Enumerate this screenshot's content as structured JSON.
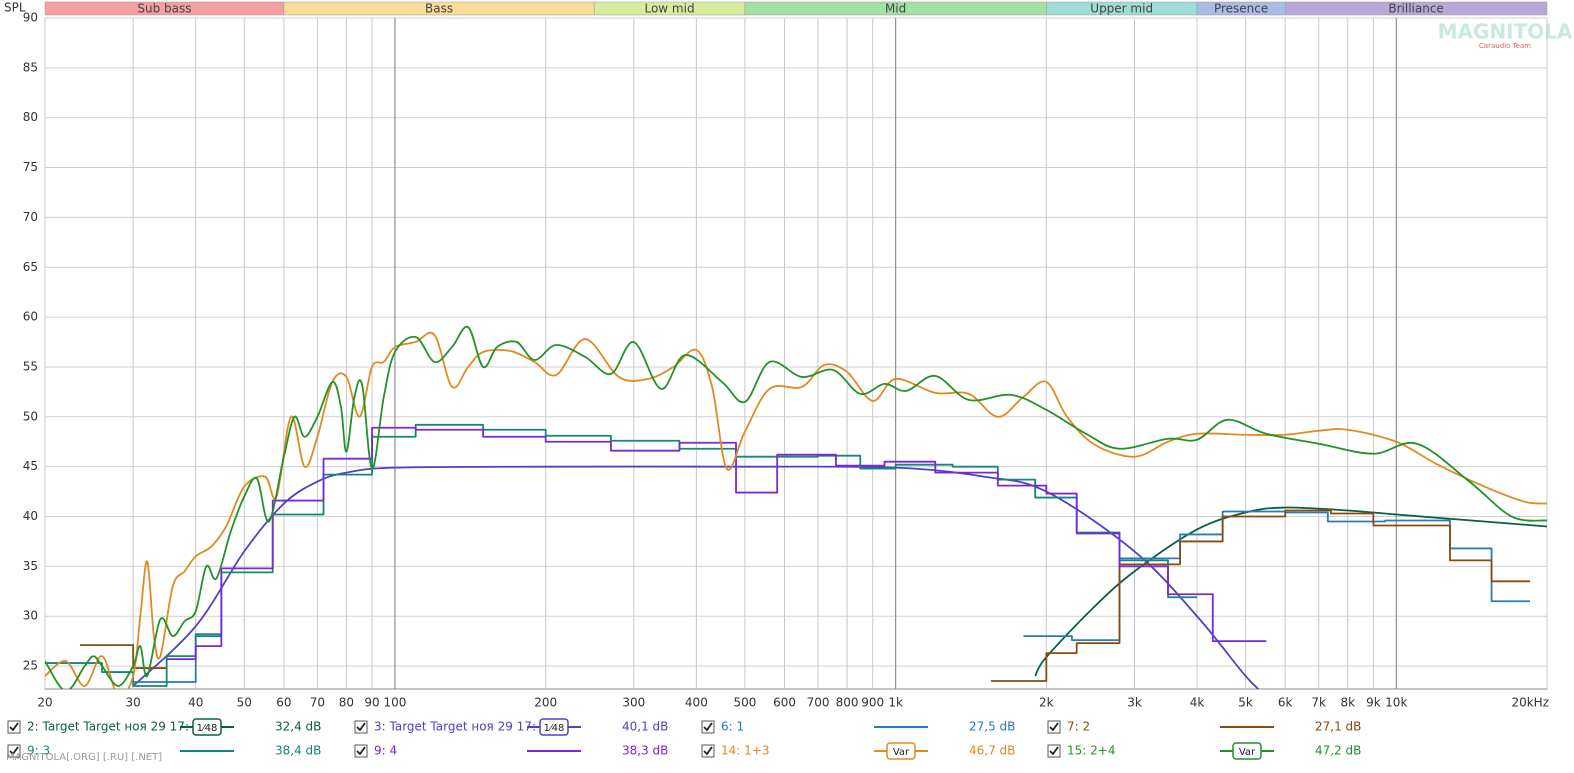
{
  "chart_data": {
    "type": "line",
    "ylabel": "SPL",
    "xscale": "log",
    "grid": true,
    "xlim": [
      20,
      20000
    ],
    "ylim": [
      22.7,
      90
    ],
    "yticks": [
      25,
      30,
      35,
      40,
      45,
      50,
      55,
      60,
      65,
      70,
      75,
      80,
      85,
      90
    ],
    "xticks": [
      20,
      30,
      40,
      50,
      60,
      70,
      80,
      90,
      100,
      200,
      300,
      400,
      500,
      600,
      700,
      800,
      900,
      {
        "value": 1000,
        "label": "1k"
      },
      {
        "value": 2000,
        "label": "2k"
      },
      {
        "value": 3000,
        "label": "3k"
      },
      {
        "value": 4000,
        "label": "4k"
      },
      {
        "value": 5000,
        "label": "5k"
      },
      {
        "value": 6000,
        "label": "6k"
      },
      {
        "value": 7000,
        "label": "7k"
      },
      {
        "value": 8000,
        "label": "8k"
      },
      {
        "value": 9000,
        "label": "9k"
      },
      {
        "value": 10000,
        "label": "10k"
      },
      {
        "value": 20000,
        "label": "20kHz"
      }
    ],
    "bands": [
      {
        "name": "Sub bass",
        "from": 20,
        "to": 60,
        "color": "#f4a0a0"
      },
      {
        "name": "Bass",
        "from": 60,
        "to": 250,
        "color": "#f8dc98"
      },
      {
        "name": "Low mid",
        "from": 250,
        "to": 500,
        "color": "#d8eca0"
      },
      {
        "name": "Mid",
        "from": 500,
        "to": 2000,
        "color": "#a4e0a4"
      },
      {
        "name": "Upper mid",
        "from": 2000,
        "to": 4000,
        "color": "#a0dcd4"
      },
      {
        "name": "Presence",
        "from": 4000,
        "to": 6000,
        "color": "#a8bce4"
      },
      {
        "name": "Brilliance",
        "from": 6000,
        "to": 20000,
        "color": "#b8a8d8"
      }
    ],
    "watermark": "MAGNITOLA[.ORG] [.RU] [.NET]",
    "logo": "MAGNITOLA",
    "logo_sub": "Caraudio Team",
    "series": [
      {
        "name": "2: Target Target ноя 29 17:",
        "color": "#0a6040",
        "drawstyle": "smooth",
        "icon_label": "1⁄48",
        "level": "32,4 dB",
        "x": [
          1900,
          2000,
          2500,
          3000,
          4000,
          5000,
          6000,
          8000,
          10000,
          15000,
          20000
        ],
        "values": [
          24,
          25.9,
          31,
          34.5,
          38.7,
          40.4,
          40.9,
          40.6,
          40.2,
          39.5,
          39.0
        ]
      },
      {
        "name": "3: Target Target ноя 29 17:",
        "color": "#5040c8",
        "drawstyle": "smooth",
        "icon_label": "1⁄48",
        "level": "40,1 dB",
        "x": [
          30,
          40,
          50,
          60,
          70,
          80,
          100,
          200,
          500,
          1000,
          1500,
          2000,
          3000,
          4000,
          5000,
          5500
        ],
        "values": [
          23,
          29,
          36.5,
          41.3,
          43.5,
          44.4,
          44.9,
          45,
          45,
          44.9,
          44,
          42.5,
          36.5,
          30,
          24,
          22
        ]
      },
      {
        "name": "6: 1",
        "color": "#2a7ab8",
        "drawstyle": "steps",
        "level": "27,5 dB",
        "x": [
          30,
          40,
          45,
          1800,
          2250,
          2800,
          3700,
          4500,
          6000,
          7300,
          9500,
          12800,
          15500,
          18500
        ],
        "values": [
          23.4,
          28.2,
          null,
          28,
          27.6,
          35.8,
          38.2,
          40.5,
          40.4,
          39.5,
          39.6,
          36.8,
          31.5,
          null
        ]
      },
      {
        "name": "7: 2",
        "color": "#8a4a10",
        "drawstyle": "steps",
        "level": "27,1 dB",
        "x": [
          23.5,
          30,
          35,
          1550,
          2000,
          2300,
          2800,
          3700,
          4500,
          6000,
          7400,
          9000,
          12800,
          15500,
          18500
        ],
        "values": [
          27.1,
          24.8,
          null,
          23.5,
          26.3,
          27.3,
          35.2,
          37.5,
          40,
          40.6,
          40.3,
          39.1,
          35.6,
          33.5,
          null
        ]
      },
      {
        "name": "9: 3",
        "color": "#13877a",
        "drawstyle": "steps",
        "level": "38,4 dB",
        "x": [
          20,
          26,
          30,
          35,
          40,
          45,
          57,
          72,
          90,
          110,
          150,
          200,
          270,
          370,
          480,
          700,
          850,
          1000,
          1300,
          1600,
          1900,
          2300,
          2800,
          3500,
          4000
        ],
        "values": [
          25.3,
          24.4,
          23,
          26,
          28,
          34.4,
          40.2,
          44.2,
          48,
          49.2,
          48.7,
          48.1,
          47.6,
          46.8,
          46,
          46.1,
          44.8,
          45.2,
          45,
          43.7,
          41.9,
          38.4,
          35.6,
          31.9,
          null
        ]
      },
      {
        "name": "9: 4",
        "color": "#7a28d8",
        "drawstyle": "steps",
        "level": "38,3 dB",
        "x": [
          35,
          40,
          45,
          57,
          72,
          90,
          110,
          150,
          200,
          270,
          370,
          480,
          580,
          760,
          950,
          1200,
          1600,
          2000,
          2300,
          2800,
          3500,
          4300,
          5500
        ],
        "values": [
          25.7,
          27,
          34.8,
          41.6,
          45.8,
          48.9,
          48.7,
          48,
          47.5,
          46.6,
          47.4,
          42.4,
          46.2,
          45.1,
          45.5,
          44.4,
          43.1,
          42.3,
          38.3,
          35,
          32.2,
          27.5,
          null
        ]
      },
      {
        "name": "14: 1+3",
        "color": "#e08a20",
        "drawstyle": "smooth",
        "icon_label": "Var",
        "level": "46,7 dB",
        "x": [
          20,
          22,
          24,
          26,
          28,
          30,
          31,
          32,
          33,
          34,
          36,
          38,
          40,
          43,
          46,
          50,
          55,
          58,
          62,
          66,
          70,
          75,
          80,
          85,
          90,
          95,
          100,
          110,
          120,
          130,
          140,
          150,
          170,
          190,
          210,
          240,
          280,
          320,
          360,
          400,
          430,
          460,
          500,
          560,
          650,
          720,
          800,
          900,
          1000,
          1200,
          1400,
          1600,
          1800,
          2000,
          2200,
          2500,
          3000,
          3500,
          4000,
          5000,
          6000,
          7000,
          8000,
          10000,
          12000,
          15000,
          18000,
          20000
        ],
        "values": [
          24,
          25.5,
          23,
          26,
          22,
          24,
          30,
          35.5,
          28,
          26,
          33,
          34.5,
          36,
          37,
          39,
          43,
          44,
          42,
          50,
          45,
          48,
          53.5,
          54,
          50,
          55,
          55.5,
          57,
          57.5,
          58.2,
          53,
          55,
          56.5,
          56.6,
          55.5,
          54.2,
          57.8,
          54,
          53.8,
          55,
          56.7,
          53,
          44.8,
          48.5,
          52.8,
          53,
          55.2,
          54.5,
          51.6,
          53.8,
          52.4,
          52.3,
          50,
          52,
          53.5,
          50,
          47.2,
          46,
          47.5,
          48.3,
          48.2,
          48.2,
          48.6,
          48.7,
          47.5,
          45.3,
          43,
          41.5,
          41.3
        ]
      },
      {
        "name": "15: 2+4",
        "color": "#22922a",
        "drawstyle": "smooth",
        "icon_label": "Var",
        "level": "47,2 dB",
        "x": [
          20,
          22,
          24,
          25,
          26,
          28,
          30,
          31,
          32,
          34,
          36,
          38,
          40,
          42,
          44,
          47,
          50,
          53,
          56,
          60,
          63,
          66,
          70,
          75,
          78,
          80,
          83,
          86,
          90,
          95,
          100,
          110,
          120,
          130,
          140,
          150,
          160,
          175,
          190,
          210,
          240,
          270,
          300,
          340,
          380,
          450,
          500,
          560,
          650,
          750,
          850,
          950,
          1050,
          1200,
          1400,
          1700,
          2000,
          2400,
          2800,
          3500,
          4000,
          4600,
          5500,
          7000,
          9000,
          11000,
          14000,
          17000,
          20000
        ],
        "values": [
          25.5,
          22.5,
          25,
          26,
          25,
          23,
          25,
          27,
          24,
          29.7,
          28,
          29.5,
          30.5,
          35,
          33.8,
          38.5,
          42,
          43.8,
          39.5,
          46,
          50,
          48,
          50,
          53.5,
          51,
          46.5,
          52,
          53.2,
          44.8,
          52,
          56.5,
          58,
          55.5,
          57,
          59,
          55,
          57,
          57.5,
          55.7,
          57.2,
          56,
          54.3,
          57.5,
          52.8,
          56.2,
          53.5,
          51.5,
          55.5,
          54,
          54.7,
          52.3,
          53.3,
          52.6,
          54.1,
          51.7,
          52.2,
          50.7,
          48.3,
          46.8,
          47.8,
          47.7,
          49.7,
          48.3,
          47.3,
          46.3,
          47.3,
          43.5,
          40,
          39.6
        ]
      }
    ]
  }
}
